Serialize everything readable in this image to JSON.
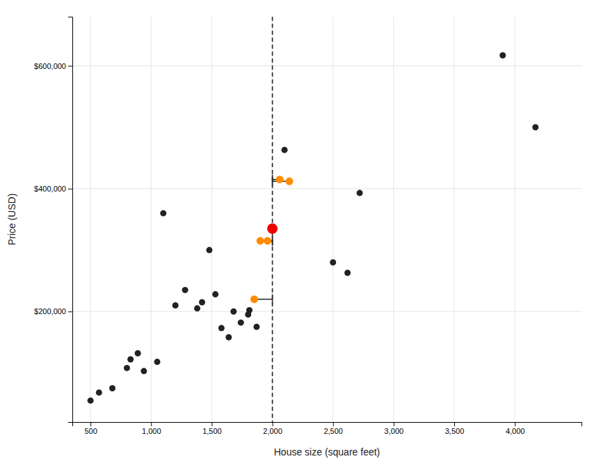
{
  "chart_data": {
    "type": "scatter",
    "title": "",
    "xlabel": "House size (square feet)",
    "ylabel": "Price (USD)",
    "xlim": [
      350,
      4550
    ],
    "ylim": [
      20000,
      680000
    ],
    "xticks": [
      500,
      {
        "value": 1000,
        "label": "1,000"
      },
      {
        "value": 1500,
        "label": "1,500"
      },
      {
        "value": 2000,
        "label": "2,000"
      },
      {
        "value": 2500,
        "label": "2,500"
      },
      {
        "value": 3000,
        "label": "3,000"
      },
      {
        "value": 3500,
        "label": "3,500"
      },
      {
        "value": 4000,
        "label": "4,000"
      }
    ],
    "yticks": [
      {
        "value": 200000,
        "label": "$200,000"
      },
      {
        "value": 400000,
        "label": "$400,000"
      },
      {
        "value": 600000,
        "label": "$600,000"
      }
    ],
    "grid": true,
    "reference_lines": [
      {
        "x": 2000,
        "color": "#222222",
        "line_style": "dashed"
      }
    ],
    "series": [
      {
        "color": "#222222",
        "marker": "circle",
        "line_style": "none",
        "x": [
          500,
          570,
          680,
          800,
          830,
          890,
          940,
          1050,
          1100,
          1200,
          1280,
          1380,
          1420,
          1480,
          1530,
          1580,
          1640,
          1680,
          1740,
          1800,
          1810,
          1870,
          2100,
          2500,
          2620,
          2720,
          3900,
          4170
        ],
        "values": [
          55000,
          68000,
          75000,
          108000,
          122000,
          132000,
          103000,
          118000,
          360000,
          210000,
          235000,
          205000,
          215000,
          300000,
          228000,
          173000,
          158000,
          200000,
          182000,
          195000,
          202000,
          175000,
          463000,
          280000,
          263000,
          393000,
          617000,
          500000
        ]
      },
      {
        "color": "#FF8C00",
        "marker": "circle",
        "line_style": "solid",
        "x": [
          1850,
          1900,
          1960,
          2060,
          2140
        ],
        "values": [
          220000,
          315000,
          315000,
          415000,
          412000
        ]
      },
      {
        "color": "#EE0000",
        "marker": "circle",
        "line_style": "none",
        "x": [
          2000
        ],
        "values": [
          335000
        ]
      }
    ]
  }
}
